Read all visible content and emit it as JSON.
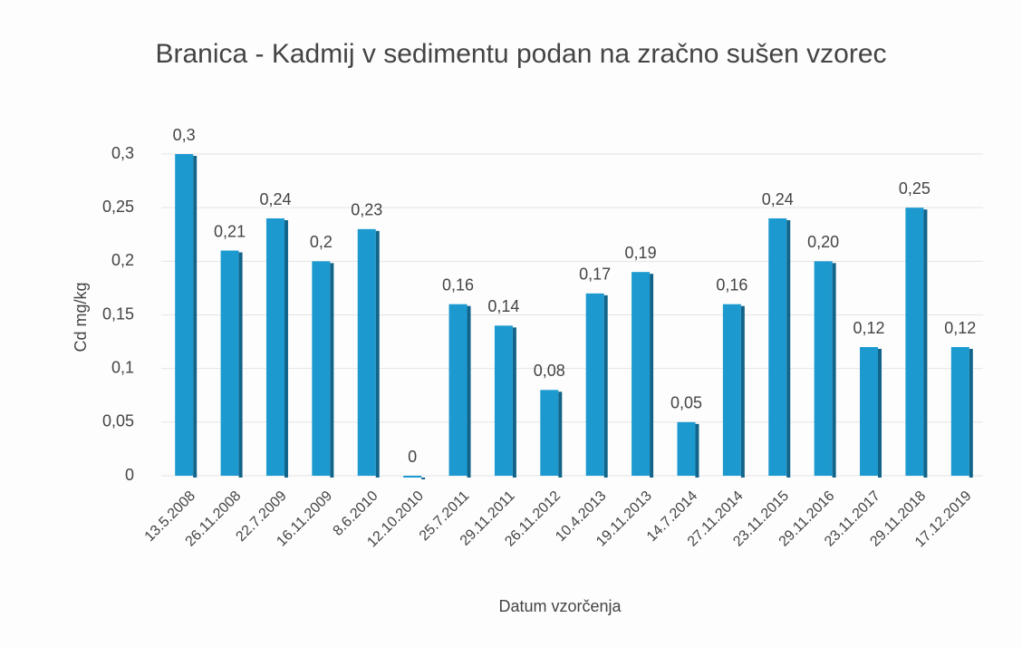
{
  "chart_data": {
    "type": "bar",
    "title": "Branica - Kadmij v sedimentu podan na zračno sušen vzorec",
    "x_label": "Datum vzorčenja",
    "y_label": "Cd mg/kg",
    "categories": [
      "13.5.2008",
      "26.11.2008",
      "22.7.2009",
      "16.11.2009",
      "8.6.2010",
      "12.10.2010",
      "25.7.2011",
      "29.11.2011",
      "26.11.2012",
      "10.4.2013",
      "19.11.2013",
      "14.7.2014",
      "27.11.2014",
      "23.11.2015",
      "29.11.2016",
      "23.11.2017",
      "29.11.2018",
      "17.12.2019"
    ],
    "values": [
      0.3,
      0.21,
      0.24,
      0.2,
      0.23,
      0,
      0.16,
      0.14,
      0.08,
      0.17,
      0.19,
      0.05,
      0.16,
      0.24,
      0.2,
      0.12,
      0.25,
      0.12
    ],
    "value_labels": [
      "0,3",
      "0,21",
      "0,24",
      "0,2",
      "0,23",
      "0",
      "0,16",
      "0,14",
      "0,08",
      "0,17",
      "0,19",
      "0,05",
      "0,16",
      "0,24",
      "0,20",
      "0,12",
      "0,25",
      "0,12"
    ],
    "color": "#1c9ad0",
    "ylim": [
      0,
      0.3
    ],
    "yticks": [
      0,
      {
        "value": 0.05,
        "label": "0,05"
      },
      {
        "value": 0.1,
        "label": "0,1"
      },
      {
        "value": 0.15,
        "label": "0,15"
      },
      {
        "value": 0.2,
        "label": "0,2"
      },
      {
        "value": 0.25,
        "label": "0,25"
      },
      {
        "value": 0.3,
        "label": "0,3"
      }
    ],
    "grid": true
  }
}
